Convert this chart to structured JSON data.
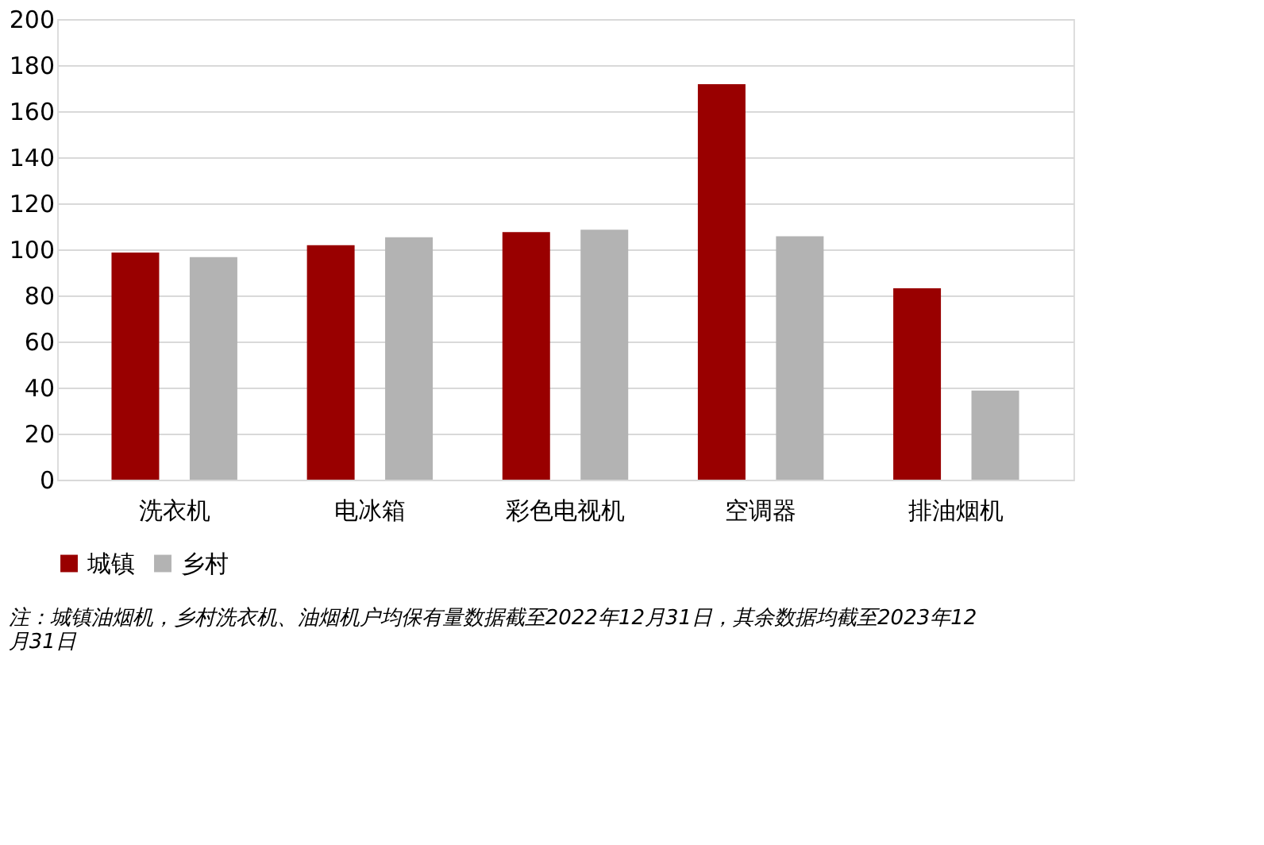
{
  "chart_data": {
    "type": "bar",
    "categories": [
      "洗衣机",
      "电冰箱",
      "彩色电视机",
      "空调器",
      "排油烟机"
    ],
    "series": [
      {
        "name": "城镇",
        "color": "#990000",
        "values": [
          98.6,
          101.8,
          107.5,
          171.7,
          83.1
        ]
      },
      {
        "name": "乡村",
        "color": "#b3b3b3",
        "values": [
          96.6,
          105.3,
          108.5,
          105.7,
          38.7
        ]
      }
    ],
    "ylim": [
      0,
      200
    ],
    "yticks": [
      0,
      20,
      40,
      60,
      80,
      100,
      120,
      140,
      160,
      180,
      200
    ],
    "grid": "y",
    "legend": "bottom",
    "annotations": [
      "注：城镇油烟机，乡村洗衣机、油烟机户均保有量数据截至2022年12月31日，其余数据均截至2023年12月31日"
    ]
  }
}
